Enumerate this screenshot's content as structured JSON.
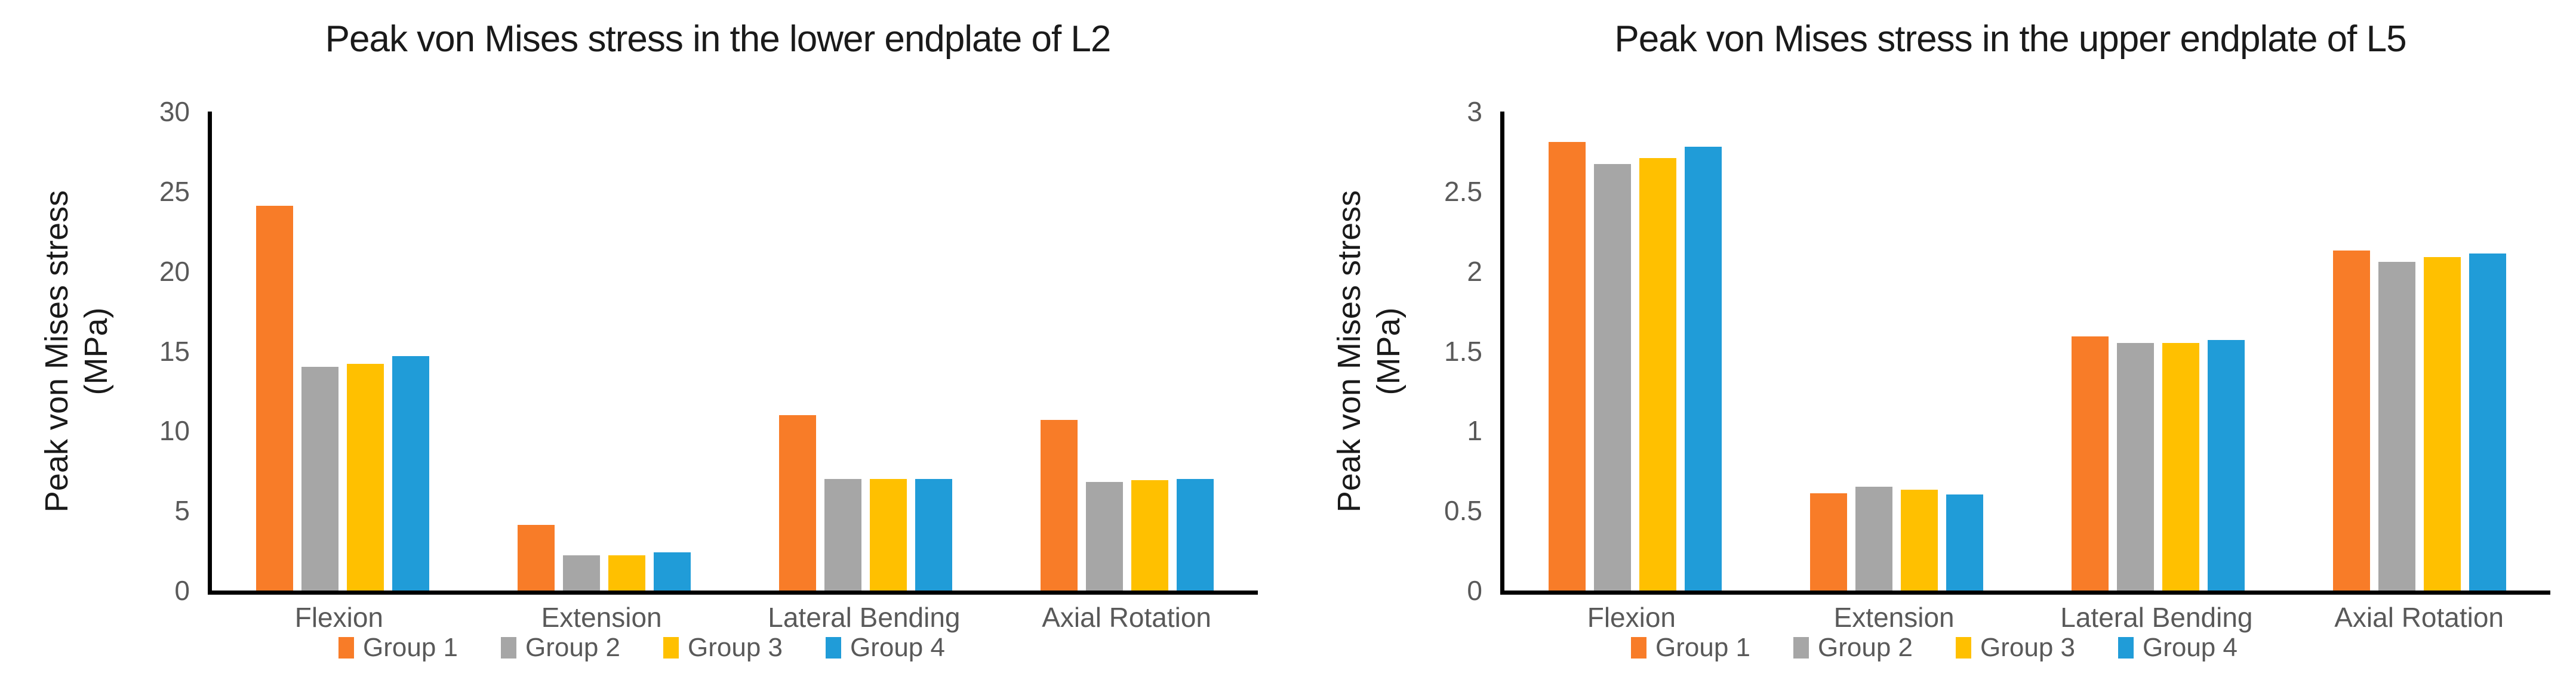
{
  "page_background": "#ffffff",
  "palette": {
    "group1_orange": "#F87C28",
    "group2_gray": "#A6A6A6",
    "group3_gold": "#FFC000",
    "group4_blue": "#209CD8",
    "axis_line": "#000000",
    "title_text": "#1a1a1a",
    "tick_text": "#595959"
  },
  "chart_data": [
    {
      "type": "bar",
      "title": "Peak von Mises stress in the lower endplate of L2",
      "ylabel": "Peak von Mises stress",
      "ylabel_unit": "(MPa)",
      "xlabel": "",
      "ylim": [
        0,
        30
      ],
      "yticks": [
        "30",
        "25",
        "20",
        "15",
        "10",
        "5",
        "0"
      ],
      "grid": false,
      "legend_position": "bottom",
      "categories": [
        "Flexion",
        "Extension",
        "Lateral Bending",
        "Axial Rotation"
      ],
      "series": [
        {
          "name": "Group 1",
          "color": "#F87C28",
          "values": [
            24.1,
            4.1,
            11.0,
            10.7
          ]
        },
        {
          "name": "Group 2",
          "color": "#A6A6A6",
          "values": [
            14.0,
            2.2,
            7.0,
            6.8
          ]
        },
        {
          "name": "Group 3",
          "color": "#FFC000",
          "values": [
            14.2,
            2.2,
            7.0,
            6.9
          ]
        },
        {
          "name": "Group 4",
          "color": "#209CD8",
          "values": [
            14.7,
            2.4,
            7.0,
            7.0
          ]
        }
      ]
    },
    {
      "type": "bar",
      "title": "Peak von Mises stress in the upper endplate of L5",
      "ylabel": "Peak von Mises stress",
      "ylabel_unit": "(MPa)",
      "xlabel": "",
      "ylim": [
        0,
        3
      ],
      "yticks": [
        "3",
        "2.5",
        "2",
        "1.5",
        "1",
        "0.5",
        "0"
      ],
      "grid": false,
      "legend_position": "bottom",
      "categories": [
        "Flexion",
        "Extension",
        "Lateral Bending",
        "Axial Rotation"
      ],
      "series": [
        {
          "name": "Group 1",
          "color": "#F87C28",
          "values": [
            2.81,
            0.61,
            1.59,
            2.13
          ]
        },
        {
          "name": "Group 2",
          "color": "#A6A6A6",
          "values": [
            2.67,
            0.65,
            1.55,
            2.06
          ]
        },
        {
          "name": "Group 3",
          "color": "#FFC000",
          "values": [
            2.71,
            0.63,
            1.55,
            2.09
          ]
        },
        {
          "name": "Group 4",
          "color": "#209CD8",
          "values": [
            2.78,
            0.6,
            1.57,
            2.11
          ]
        }
      ]
    }
  ]
}
